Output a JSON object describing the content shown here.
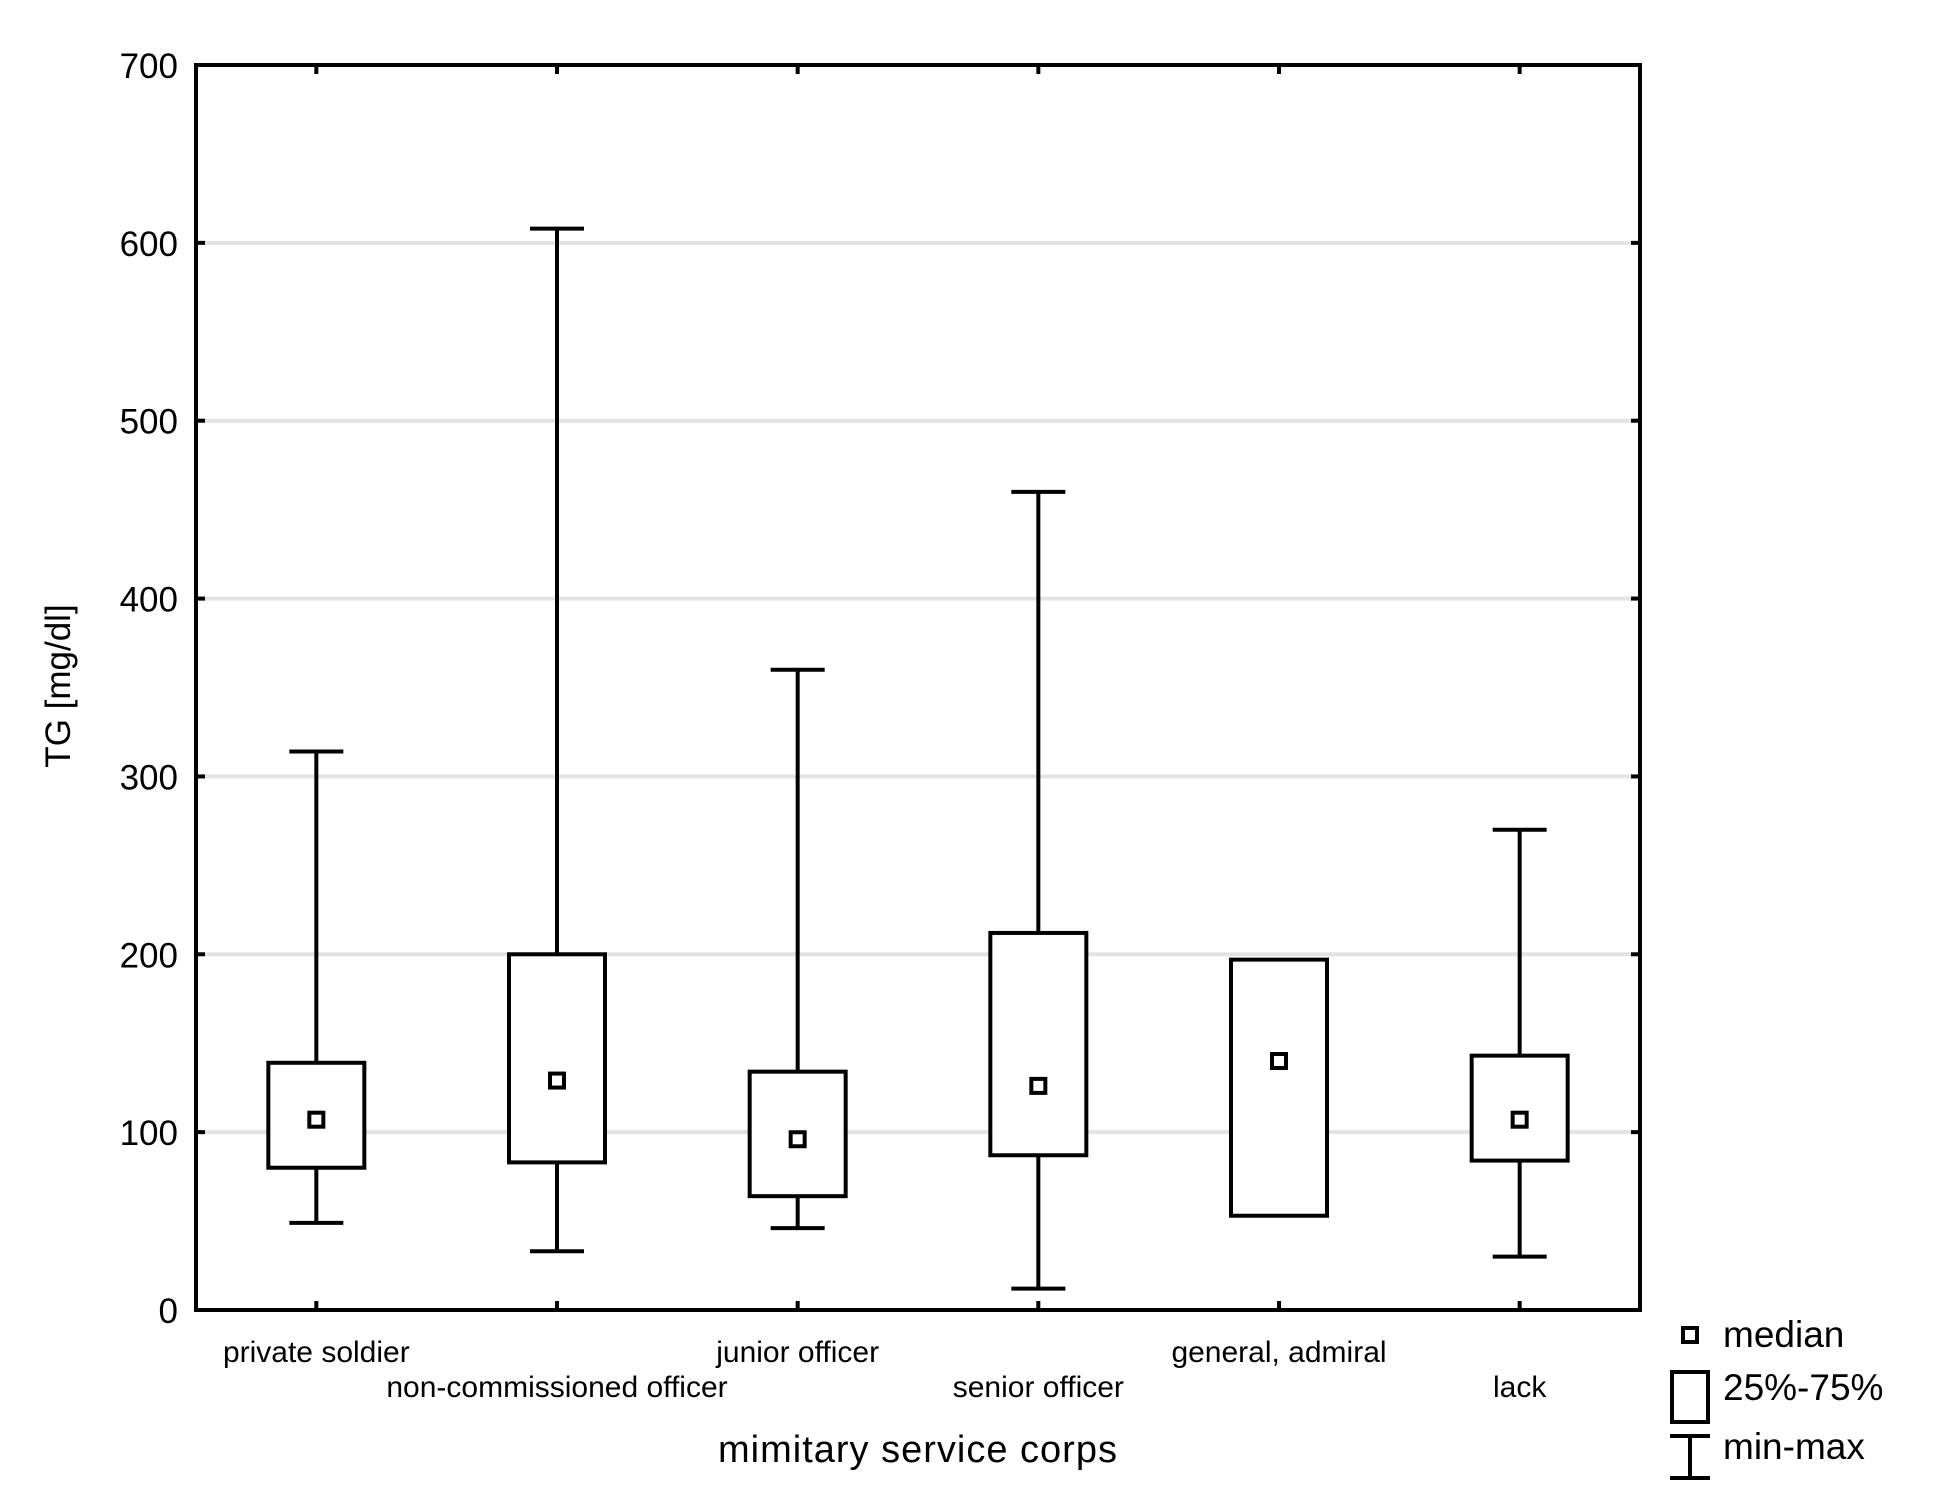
{
  "chart_data": {
    "type": "box",
    "title": "",
    "xlabel": "mimitary service corps",
    "ylabel": "TG [mg/dl]",
    "ylim": [
      0,
      700
    ],
    "yticks": [
      0,
      100,
      200,
      300,
      400,
      500,
      600,
      700
    ],
    "grid": "horizontal",
    "legend_position": "right-bottom",
    "colors": {
      "box_stroke": "#000000",
      "grid": "#e3e3e3",
      "background": "#ffffff"
    },
    "categories": [
      "private soldier",
      "non-commissioned officer",
      "junior officer",
      "senior officer",
      "general, admiral",
      "lack"
    ],
    "series": [
      {
        "min": [
          49,
          33,
          46,
          12,
          null,
          30
        ],
        "q1": [
          80,
          83,
          64,
          87,
          53,
          84
        ],
        "median": [
          107,
          129,
          96,
          126,
          140,
          107
        ],
        "q3": [
          139,
          200,
          134,
          212,
          197,
          143
        ],
        "max": [
          314,
          608,
          360,
          460,
          null,
          270
        ]
      }
    ],
    "legend": [
      {
        "label": "median",
        "icon": "median-square-icon"
      },
      {
        "label": "25%-75%",
        "icon": "box-rect-icon"
      },
      {
        "label": "min-max",
        "icon": "whisker-icon"
      }
    ]
  }
}
